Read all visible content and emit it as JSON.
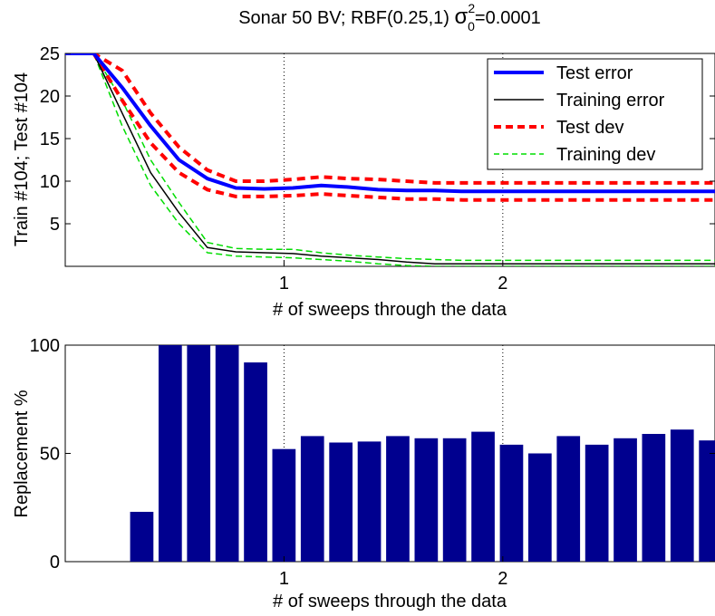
{
  "figure": {
    "title_main": "Sonar 50 BV; RBF(0.25,1)",
    "title_sigma": "σ",
    "title_sup": "2",
    "title_sub": "0",
    "title_tail": "=0.0001"
  },
  "chart_data": [
    {
      "type": "line",
      "xlabel": "# of sweeps through the data",
      "ylabel": "Train #104; Test #104",
      "xlim": [
        0.0,
        2.97
      ],
      "ylim": [
        0,
        25
      ],
      "xticks": [
        1,
        2
      ],
      "yticks": [
        5,
        10,
        15,
        20,
        25
      ],
      "grid": "dotted vertical lines at x = 1 and x = 2",
      "legend_position": "top-right",
      "series": [
        {
          "name": "Test error",
          "color": "#0000ff",
          "dash": "solid",
          "width": 4,
          "x": [
            0.0,
            0.13,
            0.26,
            0.39,
            0.52,
            0.65,
            0.78,
            0.91,
            1.04,
            1.17,
            1.3,
            1.43,
            1.56,
            1.69,
            1.82,
            1.95,
            2.08,
            2.21,
            2.34,
            2.47,
            2.6,
            2.73,
            2.86,
            2.97
          ],
          "y": [
            25,
            25,
            21,
            16.5,
            12.5,
            10.3,
            9.2,
            9.1,
            9.2,
            9.5,
            9.3,
            9.0,
            8.9,
            8.9,
            8.8,
            8.8,
            8.8,
            8.8,
            8.8,
            8.8,
            8.8,
            8.8,
            8.8,
            8.8
          ]
        },
        {
          "name": "Training error",
          "color": "#000000",
          "dash": "solid",
          "width": 1.5,
          "x": [
            0.0,
            0.13,
            0.26,
            0.39,
            0.52,
            0.65,
            0.78,
            0.91,
            1.04,
            1.17,
            1.3,
            1.43,
            1.56,
            1.69,
            1.82,
            1.95,
            2.08,
            2.21,
            2.34,
            2.47,
            2.6,
            2.73,
            2.86,
            2.97
          ],
          "y": [
            25,
            25,
            18,
            11,
            6.3,
            2.2,
            1.7,
            1.6,
            1.5,
            1.2,
            1.0,
            0.8,
            0.5,
            0.3,
            0.3,
            0.3,
            0.3,
            0.3,
            0.3,
            0.3,
            0.3,
            0.3,
            0.3,
            0.3
          ]
        },
        {
          "name": "Test dev",
          "color": "#ff0000",
          "dash": "dashed",
          "width": 4,
          "x": [
            0.0,
            0.13,
            0.26,
            0.39,
            0.52,
            0.65,
            0.78,
            0.91,
            1.04,
            1.17,
            1.3,
            1.43,
            1.56,
            1.69,
            1.82,
            1.95,
            2.08,
            2.21,
            2.34,
            2.47,
            2.6,
            2.73,
            2.86,
            2.97
          ],
          "y": [
            25,
            25,
            23,
            18,
            14,
            11.3,
            10.0,
            10.0,
            10.2,
            10.5,
            10.3,
            10.2,
            10.0,
            9.8,
            9.8,
            9.8,
            9.8,
            9.8,
            9.8,
            9.8,
            9.8,
            9.8,
            9.8,
            9.8
          ]
        },
        {
          "name": "",
          "color": "#ff0000",
          "dash": "dashed",
          "width": 4,
          "x": [
            0.0,
            0.13,
            0.26,
            0.39,
            0.52,
            0.65,
            0.78,
            0.91,
            1.04,
            1.17,
            1.3,
            1.43,
            1.56,
            1.69,
            1.82,
            1.95,
            2.08,
            2.21,
            2.34,
            2.47,
            2.6,
            2.73,
            2.86,
            2.97
          ],
          "y": [
            25,
            25,
            19.5,
            14.5,
            11,
            9.0,
            8.2,
            8.2,
            8.3,
            8.5,
            8.3,
            8.1,
            7.9,
            7.9,
            7.8,
            7.8,
            7.8,
            7.8,
            7.8,
            7.8,
            7.8,
            7.8,
            7.8,
            7.8
          ]
        },
        {
          "name": "Training dev",
          "color": "#00dd00",
          "dash": "dashed",
          "width": 1.5,
          "x": [
            0.0,
            0.13,
            0.26,
            0.39,
            0.52,
            0.65,
            0.78,
            0.91,
            1.04,
            1.17,
            1.3,
            1.43,
            1.56,
            1.69,
            1.82,
            1.95,
            2.08,
            2.21,
            2.34,
            2.47,
            2.6,
            2.73,
            2.86,
            2.97
          ],
          "y": [
            25,
            25,
            19.5,
            12.5,
            7.5,
            2.8,
            2.1,
            2.0,
            2.0,
            1.6,
            1.3,
            1.1,
            0.9,
            0.8,
            0.7,
            0.7,
            0.7,
            0.7,
            0.7,
            0.7,
            0.7,
            0.7,
            0.7,
            0.7
          ]
        },
        {
          "name": "",
          "color": "#00dd00",
          "dash": "dashed",
          "width": 1.5,
          "x": [
            0.0,
            0.13,
            0.26,
            0.39,
            0.52,
            0.65,
            0.78,
            0.91,
            1.04,
            1.17,
            1.3,
            1.43,
            1.56,
            1.69,
            1.82,
            1.95,
            2.08,
            2.21,
            2.34,
            2.47,
            2.6,
            2.73,
            2.86,
            2.97
          ],
          "y": [
            25,
            25,
            16.5,
            9.5,
            5.0,
            1.6,
            1.2,
            1.1,
            1.0,
            0.8,
            0.6,
            0.3,
            0.1,
            0.0,
            0.0,
            0.0,
            0.0,
            0.0,
            0.0,
            0.0,
            0.0,
            0.0,
            0.0,
            0.0
          ]
        }
      ]
    },
    {
      "type": "bar",
      "xlabel": "# of sweeps through the data",
      "ylabel": "Replacement %",
      "xlim": [
        0.0,
        2.97
      ],
      "ylim": [
        0,
        100
      ],
      "xticks": [
        1,
        2
      ],
      "yticks": [
        0,
        50,
        100
      ],
      "grid": "dotted vertical lines at x = 1 and x = 2",
      "bar_color": "#00008f",
      "x": [
        0.22,
        0.35,
        0.48,
        0.61,
        0.74,
        0.87,
        1.0,
        1.13,
        1.26,
        1.39,
        1.52,
        1.65,
        1.78,
        1.91,
        2.04,
        2.17,
        2.3,
        2.43,
        2.56,
        2.69,
        2.82,
        2.95
      ],
      "values": [
        0,
        23,
        100,
        100,
        100,
        92,
        52,
        58,
        55,
        55.5,
        58,
        57,
        57,
        60,
        54,
        50,
        58,
        54,
        57,
        59,
        61,
        56
      ]
    }
  ]
}
